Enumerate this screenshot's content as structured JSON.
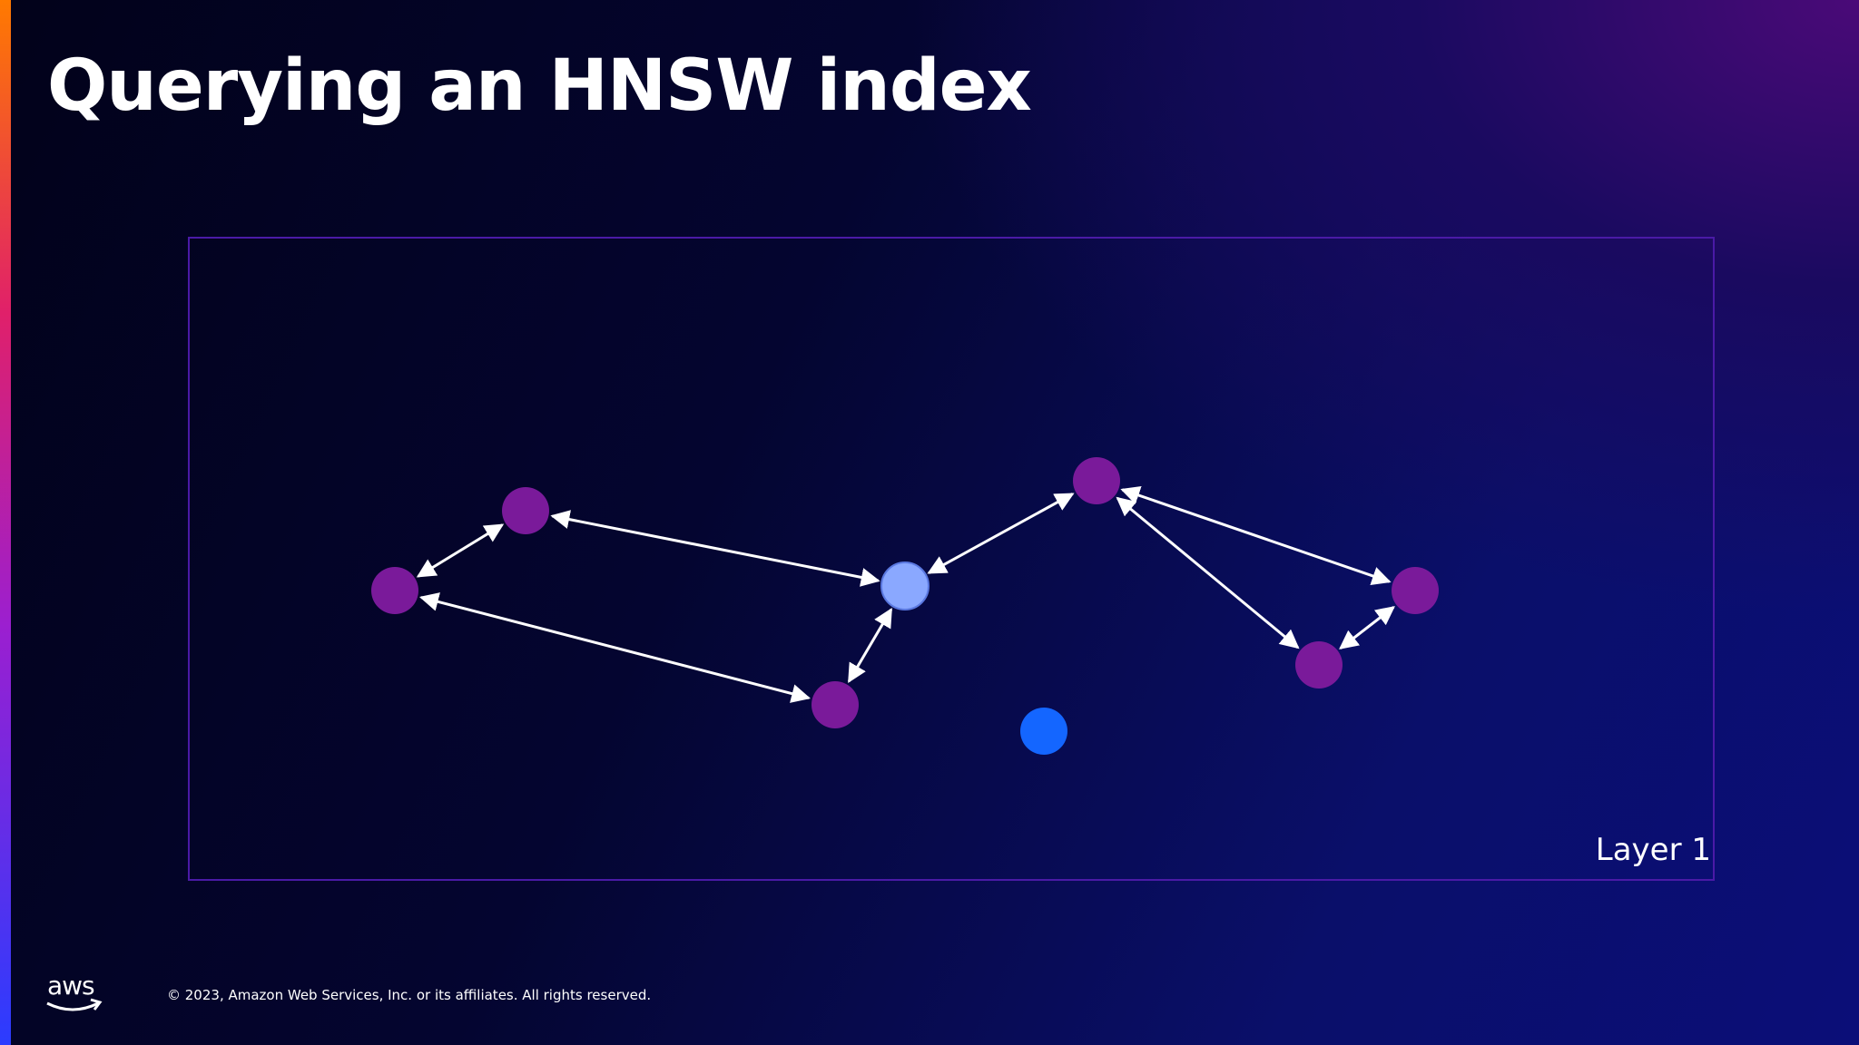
{
  "slide": {
    "title": "Querying an HNSW index",
    "layer_label": "Layer 1",
    "copyright": "© 2023, Amazon Web Services, Inc. or its affiliates. All rights reserved.",
    "logo_text": "aws",
    "logo_icon": "aws-smile-arrow-icon"
  },
  "colors": {
    "graph_node": "#7a1a9a",
    "entry_node": "#8aa8ff",
    "query_node": "#1466ff",
    "edge": "#ffffff",
    "frame": "#4a1aa6"
  },
  "diagram": {
    "nodes": [
      {
        "id": "n1",
        "kind": "graph"
      },
      {
        "id": "n2",
        "kind": "graph"
      },
      {
        "id": "n3",
        "kind": "entry"
      },
      {
        "id": "n4",
        "kind": "graph"
      },
      {
        "id": "n5",
        "kind": "graph"
      },
      {
        "id": "n6",
        "kind": "graph"
      },
      {
        "id": "n7",
        "kind": "graph"
      },
      {
        "id": "q",
        "kind": "query"
      }
    ],
    "edges": [
      [
        "n1",
        "n2"
      ],
      [
        "n1",
        "n3"
      ],
      [
        "n2",
        "n4"
      ],
      [
        "n3",
        "n4"
      ],
      [
        "n3",
        "n5"
      ],
      [
        "n5",
        "n6"
      ],
      [
        "n5",
        "n7"
      ],
      [
        "n6",
        "n7"
      ]
    ]
  }
}
